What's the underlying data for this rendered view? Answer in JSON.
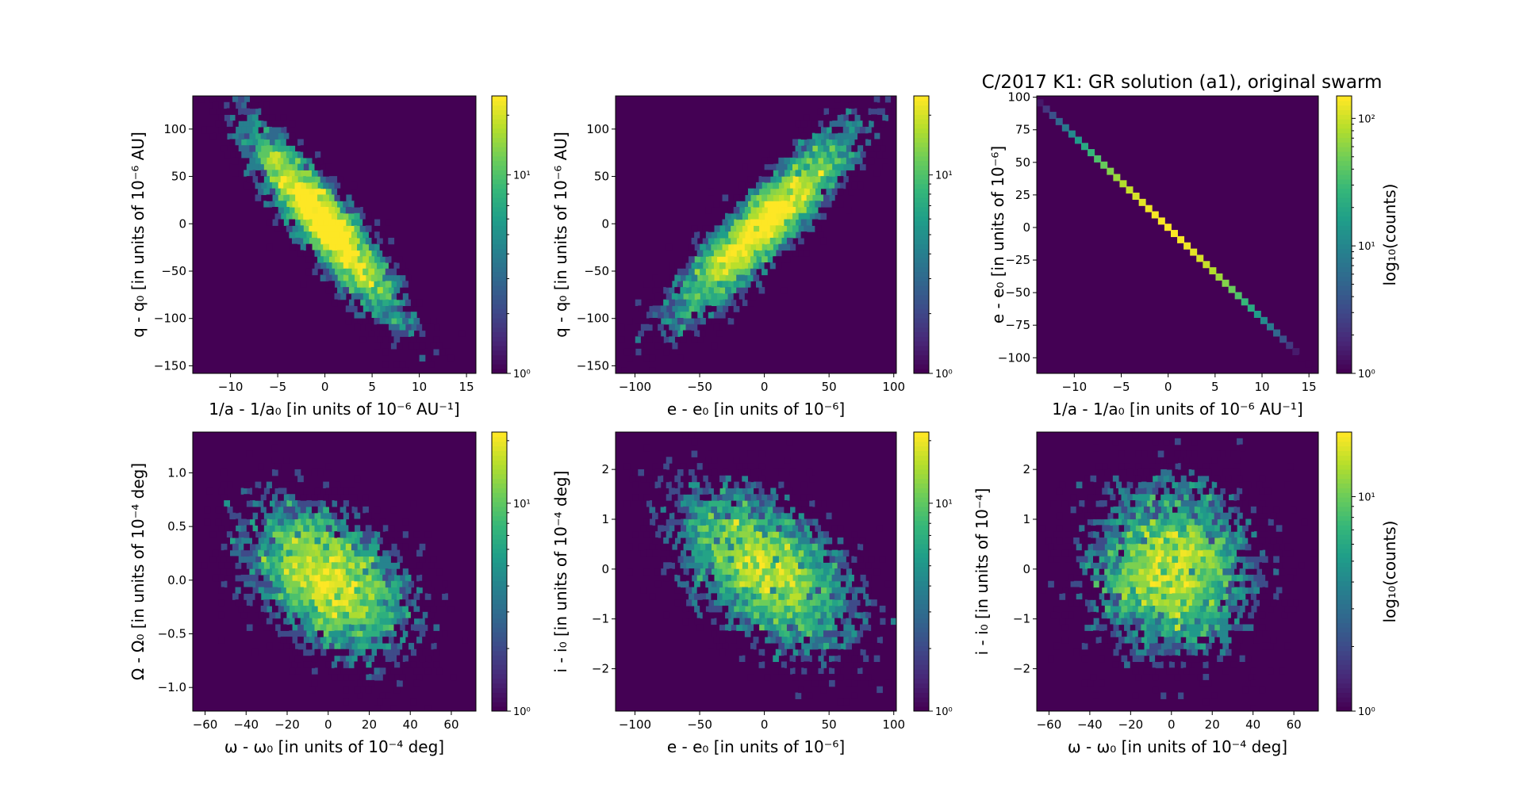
{
  "figure": {
    "title": "C/2017 K1: GR solution (a1), original swarm",
    "colormap": "viridis",
    "background_color": "#440154"
  },
  "chart_data": [
    {
      "type": "heatmap",
      "subtype": "hexbin",
      "xlabel": "1/a - 1/a₀ [in units of 10⁻⁶ AU⁻¹]",
      "ylabel": "q - q₀ [in units of 10⁻⁶ AU]",
      "xlim": [
        -14,
        16
      ],
      "ylim": [
        -158,
        135
      ],
      "xticks": [
        -10,
        -5,
        0,
        5,
        10,
        15
      ],
      "xticklabels": [
        "−10",
        "−5",
        "0",
        "5",
        "10",
        "15"
      ],
      "yticks": [
        -150,
        -100,
        -50,
        0,
        50,
        100
      ],
      "yticklabels": [
        "−150",
        "−100",
        "−50",
        "0",
        "50",
        "100"
      ],
      "distribution": {
        "mean": [
          0,
          0
        ],
        "sd": [
          4,
          50
        ],
        "corr": -0.9,
        "n": 5000
      },
      "colorbar": {
        "scale": "log",
        "range": [
          1,
          25
        ],
        "ticks": [
          "10⁰",
          "10¹"
        ],
        "label": ""
      }
    },
    {
      "type": "heatmap",
      "subtype": "hexbin",
      "xlabel": "e - e₀ [in units of 10⁻⁶]",
      "ylabel": "q - q₀ [in units of 10⁻⁶ AU]",
      "xlim": [
        -115,
        102
      ],
      "ylim": [
        -158,
        135
      ],
      "xticks": [
        -100,
        -50,
        0,
        50,
        100
      ],
      "xticklabels": [
        "−100",
        "−50",
        "0",
        "50",
        "100"
      ],
      "yticks": [
        -150,
        -100,
        -50,
        0,
        50,
        100
      ],
      "yticklabels": [
        "−150",
        "−100",
        "−50",
        "0",
        "50",
        "100"
      ],
      "distribution": {
        "mean": [
          0,
          0
        ],
        "sd": [
          35,
          50
        ],
        "corr": 0.9,
        "n": 5000
      },
      "colorbar": {
        "scale": "log",
        "range": [
          1,
          25
        ],
        "ticks": [
          "10⁰",
          "10¹"
        ],
        "label": ""
      }
    },
    {
      "type": "heatmap",
      "subtype": "hexbin",
      "xlabel": "1/a - 1/a₀ [in units of 10⁻⁶ AU⁻¹]",
      "ylabel": "e - e₀ [in units of 10⁻⁶]",
      "xlim": [
        -14,
        16
      ],
      "ylim": [
        -112,
        101
      ],
      "xticks": [
        -10,
        -5,
        0,
        5,
        10,
        15
      ],
      "xticklabels": [
        "−10",
        "−5",
        "0",
        "5",
        "10",
        "15"
      ],
      "yticks": [
        -100,
        -75,
        -50,
        -25,
        0,
        25,
        50,
        75,
        100
      ],
      "yticklabels": [
        "−100",
        "−75",
        "−50",
        "−25",
        "0",
        "25",
        "50",
        "75",
        "100"
      ],
      "distribution": {
        "line": {
          "slope": -7.0,
          "x_range": [
            -14,
            16
          ]
        }
      },
      "colorbar": {
        "scale": "log",
        "range": [
          1,
          150
        ],
        "ticks": [
          "10⁰",
          "10¹",
          "10²"
        ],
        "label": "log₁₀(counts)"
      }
    },
    {
      "type": "heatmap",
      "subtype": "hexbin",
      "xlabel": "ω - ω₀ [in units of 10⁻⁴ deg]",
      "ylabel": "Ω - Ω₀ [in units of 10⁻⁴ deg]",
      "xlim": [
        -66,
        72
      ],
      "ylim": [
        -1.22,
        1.38
      ],
      "xticks": [
        -60,
        -40,
        -20,
        0,
        20,
        40,
        60
      ],
      "xticklabels": [
        "−60",
        "−40",
        "−20",
        "0",
        "20",
        "40",
        "60"
      ],
      "yticks": [
        -1.0,
        -0.5,
        0.0,
        0.5,
        1.0
      ],
      "yticklabels": [
        "−1.0",
        "−0.5",
        "0.0",
        "0.5",
        "1.0"
      ],
      "distribution": {
        "mean": [
          0,
          0
        ],
        "sd": [
          20,
          0.35
        ],
        "corr": -0.4,
        "n": 5000
      },
      "colorbar": {
        "scale": "log",
        "range": [
          1,
          22
        ],
        "ticks": [
          "10⁰",
          "10¹"
        ],
        "label": ""
      }
    },
    {
      "type": "heatmap",
      "subtype": "hexbin",
      "xlabel": "e - e₀ [in units of 10⁻⁶]",
      "ylabel": "i - i₀ [in units of 10⁻⁴ deg]",
      "xlim": [
        -115,
        102
      ],
      "ylim": [
        -2.85,
        2.75
      ],
      "xticks": [
        -100,
        -50,
        0,
        50,
        100
      ],
      "xticklabels": [
        "−100",
        "−50",
        "0",
        "50",
        "100"
      ],
      "yticks": [
        -2,
        -1,
        0,
        1,
        2
      ],
      "yticklabels": [
        "−2",
        "−1",
        "0",
        "1",
        "2"
      ],
      "distribution": {
        "mean": [
          0,
          0
        ],
        "sd": [
          35,
          0.85
        ],
        "corr": -0.5,
        "n": 5000
      },
      "colorbar": {
        "scale": "log",
        "range": [
          1,
          22
        ],
        "ticks": [
          "10⁰",
          "10¹"
        ],
        "label": ""
      }
    },
    {
      "type": "heatmap",
      "subtype": "hexbin",
      "xlabel": "ω - ω₀ [in units of 10⁻⁴ deg]",
      "ylabel": "i - i₀ [in units of 10⁻⁴]",
      "xlim": [
        -66,
        72
      ],
      "ylim": [
        -2.85,
        2.75
      ],
      "xticks": [
        -60,
        -40,
        -20,
        0,
        20,
        40,
        60
      ],
      "xticklabels": [
        "−60",
        "−40",
        "−20",
        "0",
        "20",
        "40",
        "60"
      ],
      "yticks": [
        -2,
        -1,
        0,
        1,
        2
      ],
      "yticklabels": [
        "−2",
        "−1",
        "0",
        "1",
        "2"
      ],
      "distribution": {
        "mean": [
          0,
          0
        ],
        "sd": [
          20,
          0.85
        ],
        "corr": 0.0,
        "n": 5000
      },
      "colorbar": {
        "scale": "log",
        "range": [
          1,
          20
        ],
        "ticks": [
          "10⁰",
          "10¹"
        ],
        "label": "log₁₀(counts)"
      }
    }
  ]
}
